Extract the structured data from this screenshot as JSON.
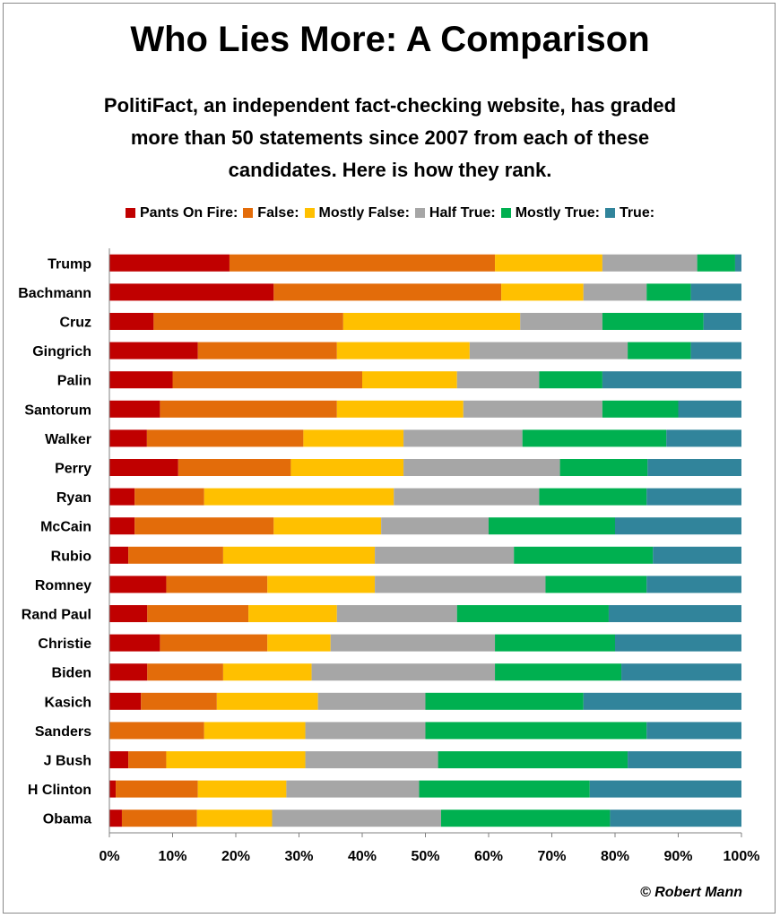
{
  "title": "Who Lies More: A Comparison",
  "subtitle": "PolitiFact,  an independent fact-checking website, has graded more than 50 statements since 2007 from each of these candidates. Here is how they rank.",
  "credit": "© Robert Mann",
  "chart_data": {
    "type": "bar",
    "orientation": "horizontal",
    "stacked": true,
    "normalized": true,
    "xlim": [
      0,
      100
    ],
    "x_ticks": [
      "0%",
      "10%",
      "20%",
      "30%",
      "40%",
      "50%",
      "60%",
      "70%",
      "80%",
      "90%",
      "100%"
    ],
    "legend_position": "top",
    "categories": [
      "Trump",
      "Bachmann",
      "Cruz",
      "Gingrich",
      "Palin",
      "Santorum",
      "Walker",
      "Perry",
      "Ryan",
      "McCain",
      "Rubio",
      "Romney",
      "Rand Paul",
      "Christie",
      "Biden",
      "Kasich",
      "Sanders",
      "J Bush",
      "H Clinton",
      "Obama"
    ],
    "series": [
      {
        "name": "Pants On Fire:",
        "color": "#c00000",
        "values": [
          19,
          26,
          7,
          14,
          10,
          8,
          6,
          11,
          4,
          4,
          3,
          9,
          6,
          8,
          6,
          5,
          0,
          3,
          1,
          2
        ]
      },
      {
        "name": "False:",
        "color": "#e36c0a",
        "values": [
          42,
          36,
          30,
          22,
          30,
          28,
          25,
          18,
          11,
          22,
          15,
          16,
          16,
          17,
          12,
          12,
          15,
          6,
          13,
          12
        ]
      },
      {
        "name": "Mostly False:",
        "color": "#ffc000",
        "values": [
          17,
          13,
          28,
          21,
          15,
          20,
          16,
          18,
          30,
          17,
          24,
          17,
          14,
          10,
          14,
          16,
          16,
          22,
          14,
          12
        ]
      },
      {
        "name": "Half True:",
        "color": "#a6a6a6",
        "values": [
          15,
          10,
          13,
          25,
          13,
          22,
          19,
          25,
          23,
          17,
          22,
          27,
          19,
          26,
          29,
          17,
          19,
          21,
          21,
          27
        ]
      },
      {
        "name": "Mostly True:",
        "color": "#00b050",
        "values": [
          6,
          7,
          16,
          10,
          10,
          12,
          23,
          14,
          17,
          20,
          22,
          16,
          24,
          19,
          20,
          25,
          35,
          30,
          27,
          27
        ]
      },
      {
        "name": "True:",
        "color": "#31849b",
        "values": [
          1,
          8,
          6,
          8,
          22,
          10,
          12,
          15,
          15,
          20,
          14,
          15,
          21,
          20,
          19,
          25,
          15,
          18,
          24,
          21
        ]
      }
    ]
  }
}
